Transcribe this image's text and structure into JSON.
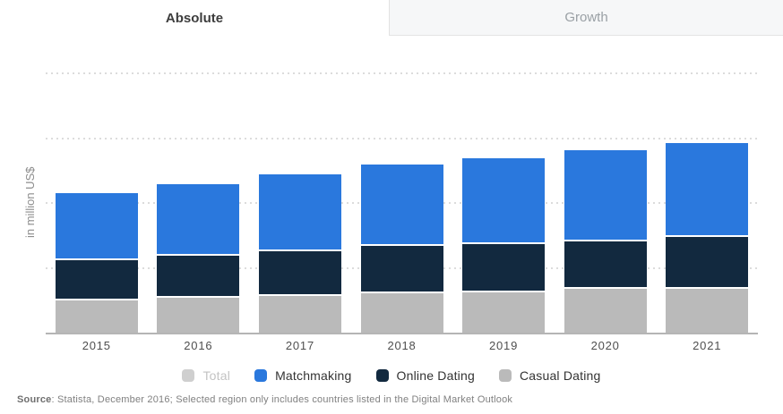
{
  "tabs": [
    {
      "label": "Absolute",
      "active": true
    },
    {
      "label": "Growth",
      "active": false
    }
  ],
  "chart_data": {
    "type": "bar",
    "stacked": true,
    "title": "",
    "xlabel": "",
    "ylabel": "in million US$",
    "categories": [
      "2015",
      "2016",
      "2017",
      "2018",
      "2019",
      "2020",
      "2021"
    ],
    "series": [
      {
        "name": "Casual Dating",
        "color": "#bababa",
        "values": [
          0.53,
          0.57,
          0.6,
          0.63,
          0.65,
          0.7,
          0.71
        ]
      },
      {
        "name": "Online Dating",
        "color": "#12293f",
        "values": [
          0.61,
          0.65,
          0.68,
          0.73,
          0.74,
          0.74,
          0.79
        ]
      },
      {
        "name": "Matchmaking",
        "color": "#2a78dd",
        "values": [
          1.01,
          1.07,
          1.16,
          1.23,
          1.3,
          1.38,
          1.43
        ]
      }
    ],
    "stack_totals": [
      2.15,
      2.29,
      2.44,
      2.59,
      2.69,
      2.82,
      2.93
    ],
    "ylim": [
      0,
      4.3
    ],
    "y_tick_labels_shown": false,
    "value_units": "relative gridline units (y-axis tick labels not displayed in chart)",
    "gridlines": "horizontal dotted at 1, 2, 3, 4",
    "legend_position": "bottom"
  },
  "legend": {
    "items": [
      {
        "label": "Total",
        "color": "#cfcfcf",
        "disabled": true
      },
      {
        "label": "Matchmaking",
        "color": "#2a78dd",
        "disabled": false
      },
      {
        "label": "Online Dating",
        "color": "#12293f",
        "disabled": false
      },
      {
        "label": "Casual Dating",
        "color": "#bababa",
        "disabled": false
      }
    ]
  },
  "source": {
    "prefix": "Source",
    "rest": ": Statista, December 2016; Selected region only includes countries listed in the Digital Market Outlook"
  }
}
